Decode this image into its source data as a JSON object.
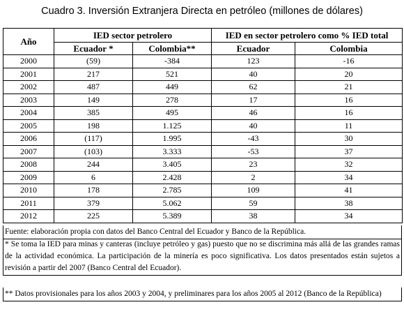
{
  "title": "Cuadro 3. Inversión Extranjera Directa en petróleo (millones de dólares)",
  "table": {
    "year_header": "Año",
    "group1": "IED sector petrolero",
    "group2": "IED en sector petrolero como % IED total",
    "sub": [
      "Ecuador *",
      "Colombia**",
      "Ecuador",
      "Colombia"
    ],
    "rows": [
      [
        "2000",
        "(59)",
        "-384",
        "123",
        "-16"
      ],
      [
        "2001",
        "217",
        "521",
        "40",
        "20"
      ],
      [
        "2002",
        "487",
        "449",
        "62",
        "21"
      ],
      [
        "2003",
        "149",
        "278",
        "17",
        "16"
      ],
      [
        "2004",
        "385",
        "495",
        "46",
        "16"
      ],
      [
        "2005",
        "198",
        "1.125",
        "40",
        "11"
      ],
      [
        "2006",
        "(117)",
        "1.995",
        "-43",
        "30"
      ],
      [
        "2007",
        "(103)",
        "3.333",
        "-53",
        "37"
      ],
      [
        "2008",
        "244",
        "3.405",
        "23",
        "32"
      ],
      [
        "2009",
        "6",
        "2.428",
        "2",
        "34"
      ],
      [
        "2010",
        "178",
        "2.785",
        "109",
        "41"
      ],
      [
        "2011",
        "379",
        "5.062",
        "59",
        "38"
      ],
      [
        "2012",
        "225",
        "5.389",
        "38",
        "34"
      ]
    ]
  },
  "footnotes": {
    "source": "Fuente: elaboración propia con datos del Banco Central del Ecuador y Banco de la República.",
    "note1": "* Se toma la IED para minas y canteras (incluye petróleo y gas) puesto que no se discrimina más allá de las grandes ramas de la actividad económica. La participación de la minería es poco significativa. Los datos presentados están sujetos a revisión a partir del 2007 (Banco Central del Ecuador).",
    "note2": "** Datos provisionales para los años 2003 y 2004, y preliminares para los años 2005 al 2012 (Banco de la República)"
  }
}
